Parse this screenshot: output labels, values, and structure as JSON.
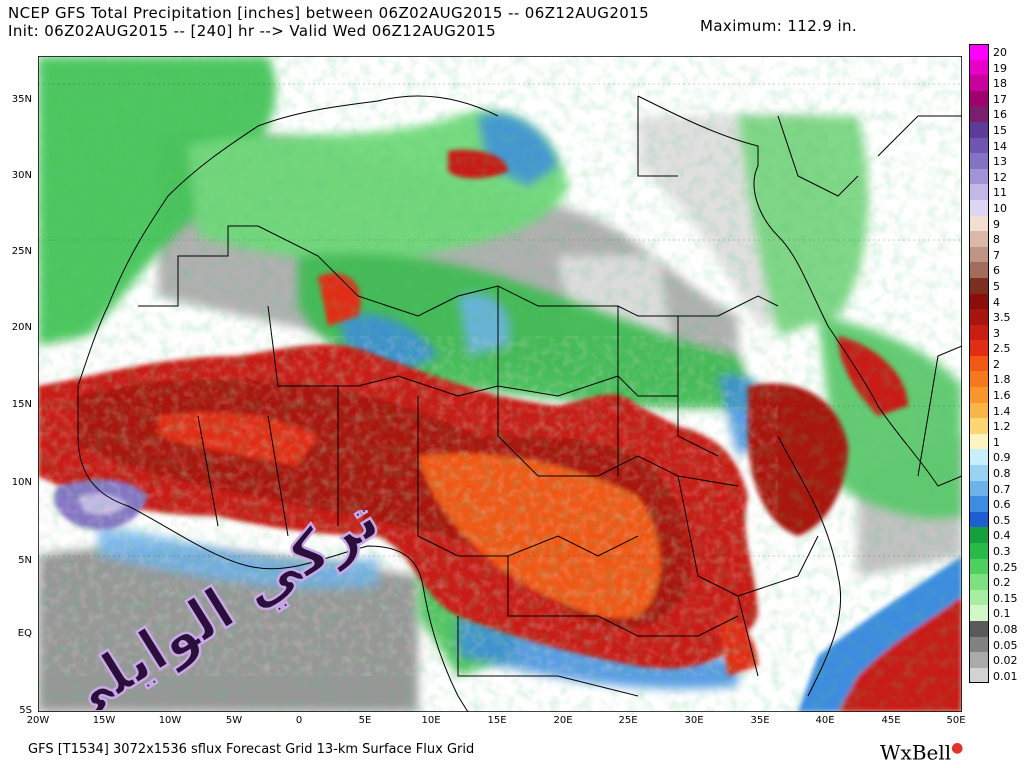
{
  "header": {
    "title_line1": "NCEP GFS Total Precipitation [inches] between 06Z02AUG2015 -- 06Z12AUG2015",
    "title_line2": "Init: 06Z02AUG2015 -- [240] hr --> Valid Wed 06Z12AUG2015",
    "maximum": "Maximum: 112.9 in."
  },
  "footer": {
    "model_info": "GFS [T1534] 3072x1536 sflux Forecast Grid 13-km Surface Flux Grid",
    "brand": "WxBell"
  },
  "watermark_text": "تركي الوايلي",
  "axes": {
    "lat_labels": [
      "35N",
      "30N",
      "25N",
      "20N",
      "15N",
      "10N",
      "5N",
      "EQ",
      "5S"
    ],
    "lon_labels": [
      "20W",
      "15W",
      "10W",
      "5W",
      "0",
      "5E",
      "10E",
      "15E",
      "20E",
      "25E",
      "30E",
      "35E",
      "40E",
      "45E",
      "50E"
    ]
  },
  "legend": [
    {
      "label": "20",
      "color": "#ff00ff"
    },
    {
      "label": "19",
      "color": "#e600c8"
    },
    {
      "label": "18",
      "color": "#c8009e"
    },
    {
      "label": "17",
      "color": "#a0006e"
    },
    {
      "label": "16",
      "color": "#7a1f6e"
    },
    {
      "label": "15",
      "color": "#5f3b99"
    },
    {
      "label": "14",
      "color": "#6f55b0"
    },
    {
      "label": "13",
      "color": "#8574c4"
    },
    {
      "label": "12",
      "color": "#a194d6"
    },
    {
      "label": "11",
      "color": "#c2b8e6"
    },
    {
      "label": "10",
      "color": "#dcd6f2"
    },
    {
      "label": "9",
      "color": "#f4ddd2"
    },
    {
      "label": "8",
      "color": "#d9b8aa"
    },
    {
      "label": "7",
      "color": "#bf9585"
    },
    {
      "label": "6",
      "color": "#a36c5c"
    },
    {
      "label": "5",
      "color": "#7c2e21"
    },
    {
      "label": "4",
      "color": "#8a0f0a"
    },
    {
      "label": "3.5",
      "color": "#a81410"
    },
    {
      "label": "3",
      "color": "#c81e14"
    },
    {
      "label": "2.5",
      "color": "#e02e14"
    },
    {
      "label": "2",
      "color": "#f05814"
    },
    {
      "label": "1.8",
      "color": "#f5781e"
    },
    {
      "label": "1.6",
      "color": "#f8962c"
    },
    {
      "label": "1.4",
      "color": "#fab548"
    },
    {
      "label": "1.2",
      "color": "#fcd574"
    },
    {
      "label": "1",
      "color": "#fff5c0"
    },
    {
      "label": "0.9",
      "color": "#c8f0fa"
    },
    {
      "label": "0.8",
      "color": "#9ad2f4"
    },
    {
      "label": "0.7",
      "color": "#6eb2ec"
    },
    {
      "label": "0.6",
      "color": "#3e8ce0"
    },
    {
      "label": "0.5",
      "color": "#1e5ed2"
    },
    {
      "label": "0.4",
      "color": "#14a03c"
    },
    {
      "label": "0.3",
      "color": "#28bb48"
    },
    {
      "label": "0.25",
      "color": "#4ed060"
    },
    {
      "label": "0.2",
      "color": "#7ee07e"
    },
    {
      "label": "0.15",
      "color": "#a8eea0"
    },
    {
      "label": "0.1",
      "color": "#d2f8c8"
    },
    {
      "label": "0.08",
      "color": "#5a5a5a"
    },
    {
      "label": "0.05",
      "color": "#828282"
    },
    {
      "label": "0.02",
      "color": "#aaaaaa"
    },
    {
      "label": "0.01",
      "color": "#d2d2d2"
    }
  ]
}
